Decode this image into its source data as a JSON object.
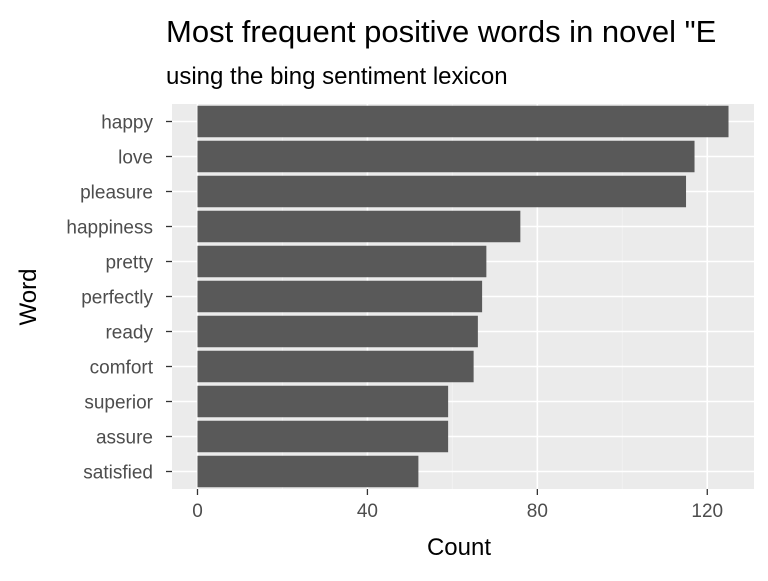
{
  "chart_data": {
    "type": "bar",
    "orientation": "horizontal",
    "title": "Most frequent positive words in novel \"E",
    "subtitle": "using the bing sentiment lexicon",
    "xlabel": "Count",
    "ylabel": "Word",
    "categories": [
      "happy",
      "love",
      "pleasure",
      "happiness",
      "pretty",
      "perfectly",
      "ready",
      "comfort",
      "superior",
      "assure",
      "satisfied"
    ],
    "values": [
      125,
      117,
      115,
      76,
      68,
      67,
      66,
      65,
      59,
      59,
      52
    ],
    "xlim": [
      -6,
      131
    ],
    "xticks": [
      0,
      40,
      80,
      120
    ],
    "grid": true,
    "colors": {
      "bar": "#595959",
      "panel": "#ebebeb",
      "grid_major": "#ffffff",
      "grid_minor": "#f2f2f2",
      "tick_label": "#4d4d4d",
      "tick_mark": "#333333"
    }
  }
}
